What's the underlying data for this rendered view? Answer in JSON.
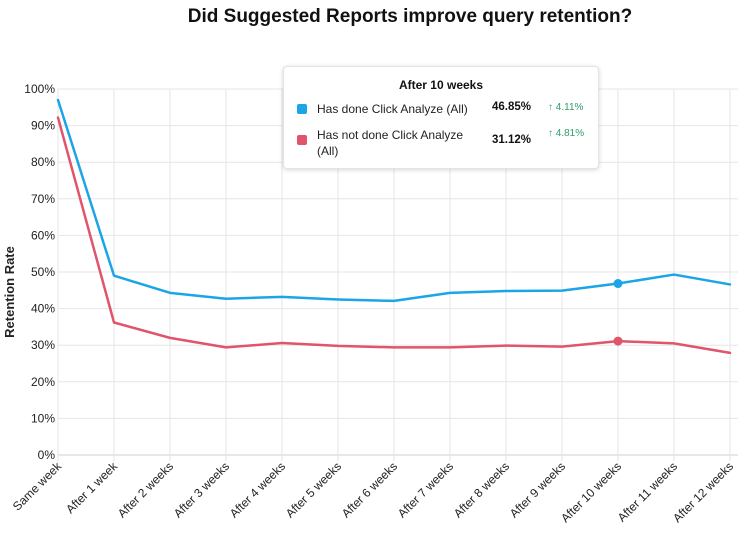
{
  "chart_data": {
    "type": "line",
    "title": "Did Suggested Reports improve query retention?",
    "xlabel": "",
    "ylabel": "Retention Rate",
    "ylim": [
      0,
      100
    ],
    "yticks": [
      "0%",
      "10%",
      "20%",
      "30%",
      "40%",
      "50%",
      "60%",
      "70%",
      "80%",
      "90%",
      "100%"
    ],
    "categories": [
      "Same week",
      "After 1 week",
      "After 2 weeks",
      "After 3 weeks",
      "After 4 weeks",
      "After 5 weeks",
      "After 6 weeks",
      "After 7 weeks",
      "After 8 weeks",
      "After 9 weeks",
      "After 10 weeks",
      "After 11 weeks",
      "After 12 weeks"
    ],
    "series": [
      {
        "name": "Has done Click Analyze (All)",
        "color": "#1ca5e6",
        "values": [
          97.0,
          49.0,
          44.3,
          42.7,
          43.2,
          42.5,
          42.1,
          44.3,
          44.8,
          44.9,
          46.85,
          49.3,
          46.6
        ]
      },
      {
        "name": "Has not done Click Analyze (All)",
        "color": "#e0546c",
        "values": [
          92.2,
          36.2,
          32.0,
          29.4,
          30.6,
          29.8,
          29.4,
          29.4,
          29.9,
          29.6,
          31.12,
          30.5,
          27.9
        ]
      }
    ],
    "highlight_index": 10,
    "grid": true
  },
  "tooltip": {
    "title": "After 10 weeks",
    "rows": [
      {
        "name": "Has done Click Analyze (All)",
        "value": "46.85%",
        "change": "↑ 4.11%",
        "color": "#1ca5e6",
        "change_color": "#2e9e6a"
      },
      {
        "name": "Has not done Click Analyze (All)",
        "value": "31.12%",
        "change": "↑ 4.81%",
        "color": "#e0546c",
        "change_color": "#2e9e6a"
      }
    ]
  }
}
